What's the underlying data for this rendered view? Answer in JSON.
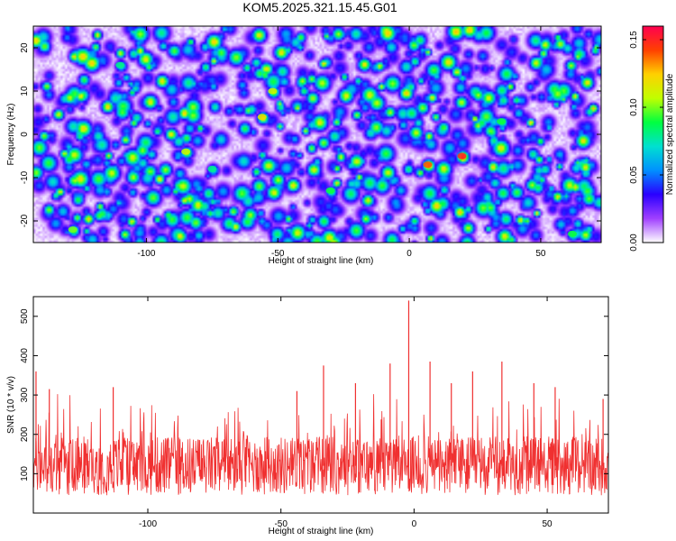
{
  "title": "KOM5.2025.321.15.45.G01",
  "colorbar_label": "Normalized spectral amplitude",
  "colors": {
    "snr_line": "#f03030",
    "frame": "#000000"
  },
  "chart_data": [
    {
      "type": "heatmap",
      "xlabel": "Height of straight line (km)",
      "ylabel": "Frequency (Hz)",
      "xlim": [
        -143,
        73
      ],
      "ylim": [
        -25,
        25
      ],
      "x_ticks": [
        -100,
        -50,
        0,
        50
      ],
      "y_ticks": [
        20,
        10,
        0,
        -10,
        -20
      ],
      "colorbar": {
        "label": "Normalized spectral amplitude",
        "range": [
          0.0,
          0.16
        ],
        "ticks": [
          "0.00",
          "0.05",
          "0.10",
          "0.15"
        ],
        "colormap": [
          "#ffffff",
          "#a040ff",
          "#2a00ff",
          "#0090ff",
          "#00e0d0",
          "#00ff40",
          "#c0ff00",
          "#ffd000",
          "#ff4000",
          "#ff0050"
        ]
      },
      "peaks": [
        {
          "x": 20,
          "y": -5,
          "value": 0.15
        },
        {
          "x": 7,
          "y": -7,
          "value": 0.14
        },
        {
          "x": -56,
          "y": 4,
          "value": 0.12
        },
        {
          "x": -52,
          "y": 10,
          "value": 0.11
        },
        {
          "x": -85,
          "y": -4,
          "value": 0.11
        },
        {
          "x": -128,
          "y": -22,
          "value": 0.1
        },
        {
          "x": -30,
          "y": -13,
          "value": 0.09
        },
        {
          "x": 35,
          "y": 3,
          "value": 0.09
        },
        {
          "x": 62,
          "y": -23,
          "value": 0.09
        },
        {
          "x": -75,
          "y": -8,
          "value": 0.08
        },
        {
          "x": -110,
          "y": 16,
          "value": 0.08
        }
      ],
      "background_mean": 0.03
    },
    {
      "type": "line",
      "xlabel": "Height of straight line (km)",
      "ylabel": "SNR (10 * v/v)",
      "xlim": [
        -143,
        73
      ],
      "ylim": [
        0,
        550
      ],
      "x_ticks": [
        -100,
        -50,
        0,
        50
      ],
      "y_ticks": [
        100,
        200,
        300,
        400,
        500
      ],
      "baseline_mean": 120,
      "spikes": [
        {
          "x": -2,
          "y": 540
        },
        {
          "x": -34,
          "y": 375
        },
        {
          "x": 6,
          "y": 385
        },
        {
          "x": 22,
          "y": 360
        },
        {
          "x": 33,
          "y": 385
        },
        {
          "x": -142,
          "y": 360
        },
        {
          "x": -113,
          "y": 320
        },
        {
          "x": -44,
          "y": 310
        },
        {
          "x": -22,
          "y": 330
        },
        {
          "x": -9,
          "y": 380
        },
        {
          "x": 14,
          "y": 330
        },
        {
          "x": 45,
          "y": 330
        },
        {
          "x": 53,
          "y": 320
        },
        {
          "x": 71,
          "y": 290
        },
        {
          "x": -137,
          "y": 315
        }
      ]
    }
  ]
}
